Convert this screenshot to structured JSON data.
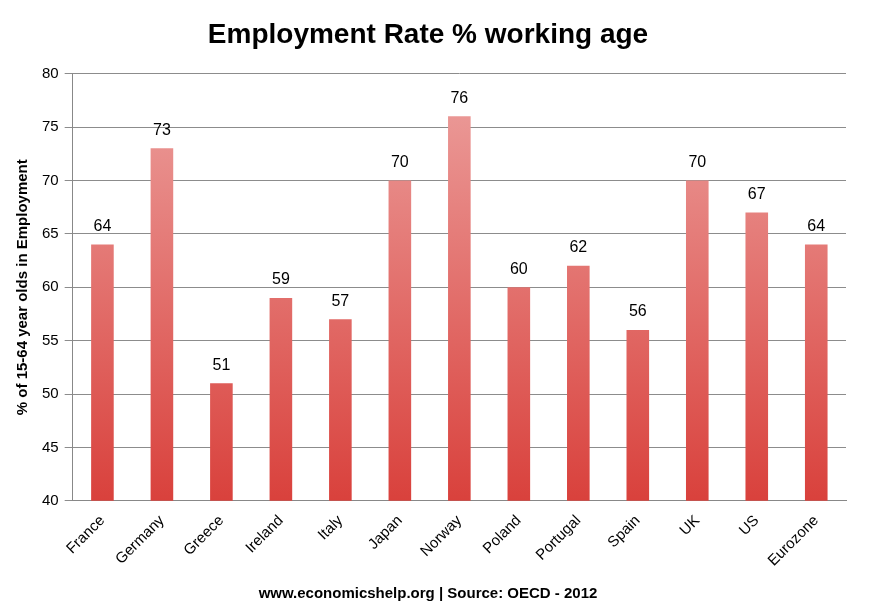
{
  "chart_data": {
    "type": "bar",
    "title": "Employment Rate % working age",
    "ylabel": "% of 15-64 year olds in Employment",
    "annotations": [
      "www.economicshelp.org | Source: OECD - 2012"
    ],
    "categories": [
      "France",
      "Germany",
      "Greece",
      "Ireland",
      "Italy",
      "Japan",
      "Norway",
      "Poland",
      "Portugal",
      "Spain",
      "UK",
      "US",
      "Eurozone"
    ],
    "values": [
      64,
      73,
      51,
      59,
      57,
      70,
      76,
      60,
      62,
      56,
      70,
      67,
      64
    ],
    "color": "#d9413c",
    "ylim": [
      40,
      80
    ],
    "yticks": [
      40,
      45,
      50,
      55,
      60,
      65,
      70,
      75,
      80
    ],
    "grid": true,
    "data_labels": true
  }
}
